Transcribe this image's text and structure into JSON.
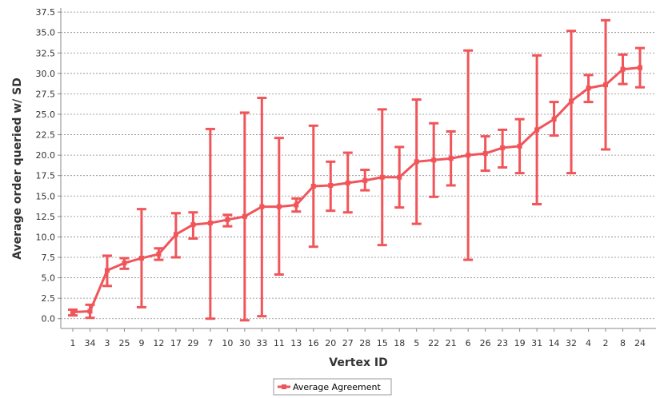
{
  "colors": {
    "series": "#f0555a",
    "grid": "#888888",
    "axis": "#888888",
    "background": "#ffffff"
  },
  "chart_data": {
    "type": "line",
    "title": "",
    "xlabel": "Vertex ID",
    "ylabel": "Average order queried w/ SD",
    "ylim": [
      -1.2,
      38.0
    ],
    "yticks": [
      0.0,
      2.5,
      5.0,
      7.5,
      10.0,
      12.5,
      15.0,
      17.5,
      20.0,
      22.5,
      25.0,
      27.5,
      30.0,
      32.5,
      35.0,
      37.5
    ],
    "grid": "horizontal dashed",
    "legend_position": "bottom-center",
    "categories": [
      "1",
      "34",
      "3",
      "25",
      "9",
      "12",
      "17",
      "29",
      "7",
      "10",
      "30",
      "33",
      "11",
      "13",
      "16",
      "20",
      "27",
      "28",
      "15",
      "18",
      "5",
      "22",
      "21",
      "6",
      "26",
      "23",
      "19",
      "31",
      "14",
      "32",
      "4",
      "2",
      "8",
      "24"
    ],
    "series": [
      {
        "name": "Average Agreement",
        "values": [
          0.8,
          0.9,
          5.9,
          6.8,
          7.4,
          7.9,
          10.3,
          11.5,
          11.7,
          12.1,
          12.5,
          13.7,
          13.7,
          13.9,
          16.2,
          16.3,
          16.6,
          16.9,
          17.3,
          17.3,
          19.2,
          19.4,
          19.6,
          20.0,
          20.2,
          20.9,
          21.1,
          23.1,
          24.4,
          26.6,
          28.2,
          28.6,
          30.5,
          30.7
        ],
        "sd_low": [
          0.4,
          0.1,
          4.0,
          6.1,
          1.4,
          7.2,
          7.5,
          9.8,
          0.0,
          11.3,
          -0.2,
          0.3,
          5.4,
          13.1,
          8.8,
          13.2,
          13.0,
          15.7,
          9.0,
          13.6,
          11.6,
          14.9,
          16.3,
          7.2,
          18.1,
          18.5,
          17.8,
          14.0,
          22.4,
          17.8,
          26.5,
          20.7,
          28.7,
          28.3
        ],
        "sd_high": [
          1.1,
          1.7,
          7.7,
          7.4,
          13.4,
          8.6,
          12.9,
          13.0,
          23.2,
          12.7,
          25.2,
          27.0,
          22.1,
          14.7,
          23.6,
          19.2,
          20.3,
          18.2,
          25.6,
          21.0,
          26.8,
          23.9,
          22.9,
          32.8,
          22.3,
          23.1,
          24.4,
          32.2,
          26.5,
          35.2,
          29.8,
          36.5,
          32.3,
          33.1
        ]
      }
    ]
  }
}
